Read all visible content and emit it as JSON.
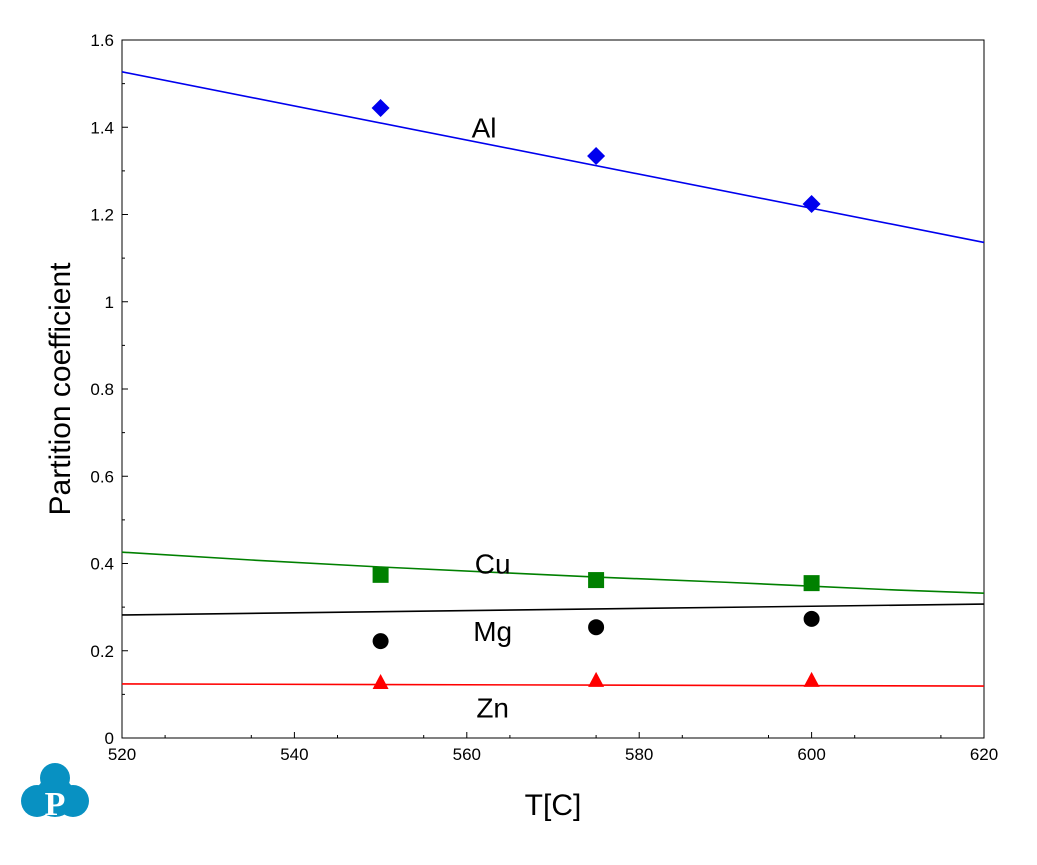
{
  "chart_data": {
    "type": "line",
    "title": "",
    "xlabel": "T[C]",
    "ylabel": "Partition coefficient",
    "xlim": [
      520,
      620
    ],
    "ylim": [
      0,
      1.6
    ],
    "xticks": [
      "520",
      "540",
      "560",
      "580",
      "600",
      "620"
    ],
    "yticks": [
      "0",
      "0.2",
      "0.4",
      "0.6",
      "0.8",
      "1",
      "1.2",
      "1.4",
      "1.6"
    ],
    "grid": false,
    "series": [
      {
        "name": "Al",
        "color": "#0000ee",
        "marker": "diamond",
        "line": {
          "x": [
            520,
            620
          ],
          "y": [
            1.527,
            1.136
          ]
        },
        "points": {
          "x": [
            550,
            575,
            600
          ],
          "y": [
            1.444,
            1.334,
            1.224
          ]
        }
      },
      {
        "name": "Cu",
        "color": "#008000",
        "marker": "square",
        "line": {
          "x": [
            520,
            535,
            550,
            565,
            575,
            590,
            600,
            610,
            620
          ],
          "y": [
            0.426,
            0.408,
            0.392,
            0.378,
            0.369,
            0.357,
            0.348,
            0.339,
            0.332
          ]
        },
        "points": {
          "x": [
            550,
            575,
            600
          ],
          "y": [
            0.374,
            0.362,
            0.355
          ]
        }
      },
      {
        "name": "Mg",
        "color": "#000000",
        "marker": "circle",
        "line": {
          "x": [
            520,
            620
          ],
          "y": [
            0.282,
            0.307
          ]
        },
        "points": {
          "x": [
            550,
            575,
            600
          ],
          "y": [
            0.222,
            0.254,
            0.273
          ]
        }
      },
      {
        "name": "Zn",
        "color": "#ff0000",
        "marker": "triangle",
        "line": {
          "x": [
            520,
            620
          ],
          "y": [
            0.124,
            0.119
          ]
        },
        "points": {
          "x": [
            550,
            575,
            600
          ],
          "y": [
            0.126,
            0.131,
            0.131
          ]
        }
      }
    ],
    "annotations": [
      {
        "text": "Al",
        "x": 562,
        "y": 1.4
      },
      {
        "text": "Cu",
        "x": 563,
        "y": 0.4
      },
      {
        "text": "Mg",
        "x": 563,
        "y": 0.245
      },
      {
        "text": "Zn",
        "x": 563,
        "y": 0.07
      }
    ]
  },
  "logo": {
    "text": "P",
    "color": "#0891c2"
  }
}
